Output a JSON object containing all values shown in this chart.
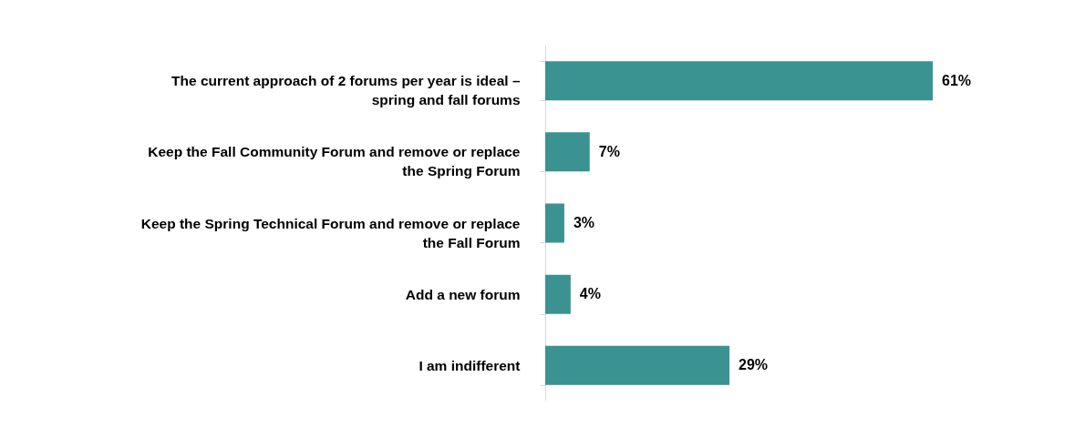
{
  "chart_data": {
    "type": "bar",
    "orientation": "horizontal",
    "categories": [
      "The current approach of 2 forums per year is ideal – spring and fall forums",
      "Keep the Fall Community Forum and remove or replace the Spring Forum",
      "Keep the Spring Technical Forum and remove or replace the Fall Forum",
      "Add a new forum",
      "I am indifferent"
    ],
    "values": [
      61,
      7,
      3,
      4,
      29
    ],
    "value_labels": [
      "61%",
      "7%",
      "3%",
      "4%",
      "29%"
    ],
    "color": "#3a9390"
  }
}
